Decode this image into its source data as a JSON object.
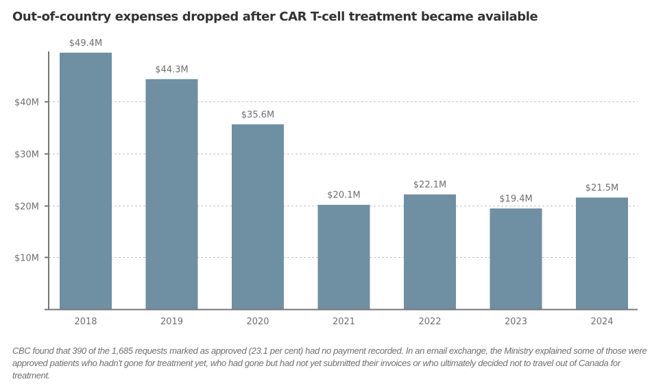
{
  "chart_data": {
    "type": "bar",
    "title": "Out-of-country expenses dropped after CAR T-cell treatment became available",
    "xlabel": "",
    "ylabel": "",
    "categories": [
      "2018",
      "2019",
      "2020",
      "2021",
      "2022",
      "2023",
      "2024"
    ],
    "values": [
      49.4,
      44.3,
      35.6,
      20.1,
      22.1,
      19.4,
      21.5
    ],
    "value_labels": [
      "$49.4M",
      "$44.3M",
      "$35.6M",
      "$20.1M",
      "$22.1M",
      "$19.4M",
      "$21.5M"
    ],
    "units": "millions of dollars",
    "ylim": [
      0,
      50
    ],
    "yticks": [
      10,
      20,
      30,
      40
    ],
    "ytick_labels": [
      "$10M",
      "$20M",
      "$30M",
      "$40M"
    ],
    "grid": true,
    "bar_color": "#6f8fa3",
    "note": "CBC found that 390 of the 1,685 requests marked as approved (23.1 per cent) had no payment recorded. In an email exchange, the Ministry explained some of those were approved patients who hadn't gone for treatment yet, who had gone but had not yet submitted their invoices or who ultimately decided not to travel out of Canada for treatment."
  }
}
